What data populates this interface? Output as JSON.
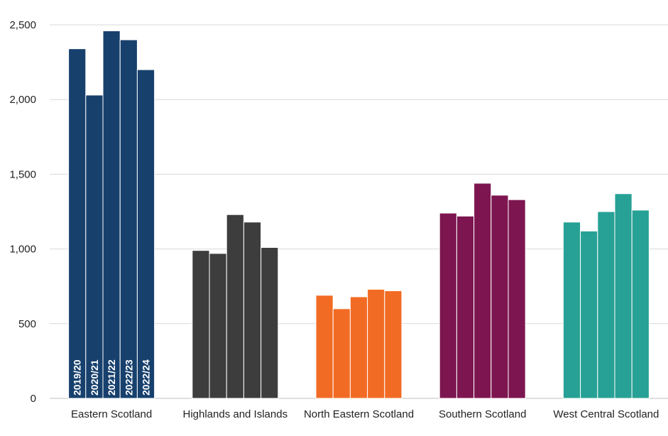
{
  "chart_data": {
    "type": "bar",
    "title": "",
    "xlabel": "",
    "ylabel": "",
    "ylim": [
      0,
      2500
    ],
    "yticks": [
      0,
      500,
      1000,
      1500,
      2000,
      2500
    ],
    "ytick_labels": [
      "0",
      "500",
      "1,000",
      "1,500",
      "2,000",
      "2,500"
    ],
    "grid": true,
    "legend": "none",
    "categories": [
      "Eastern Scotland",
      "Highlands and Islands",
      "North Eastern Scotland",
      "Southern Scotland",
      "West Central Scotland"
    ],
    "series": [
      {
        "name": "2019/20",
        "values": [
          2340,
          990,
          690,
          1240,
          1180
        ]
      },
      {
        "name": "2020/21",
        "values": [
          2030,
          970,
          600,
          1220,
          1120
        ]
      },
      {
        "name": "2021/22",
        "values": [
          2460,
          1230,
          680,
          1440,
          1250
        ]
      },
      {
        "name": "2022/23",
        "values": [
          2400,
          1180,
          730,
          1360,
          1370
        ]
      },
      {
        "name": "2022/24",
        "values": [
          2200,
          1010,
          720,
          1330,
          1260
        ]
      }
    ],
    "category_colors": [
      "#17406d",
      "#3d3d3d",
      "#f26b25",
      "#7d1650",
      "#27a195"
    ],
    "in_bar_labels_category": "Eastern Scotland"
  }
}
